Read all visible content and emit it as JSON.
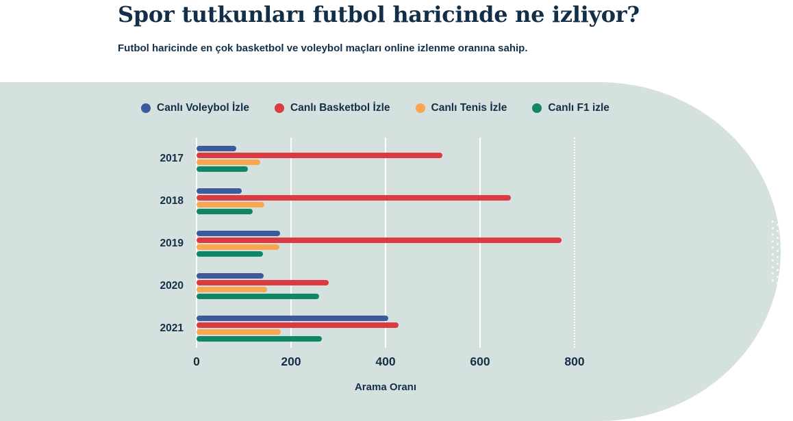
{
  "header": {
    "title": "Spor tutkunları futbol haricinde ne izliyor?",
    "subtitle": "Futbol haricinde en çok basketbol ve voleybol maçları online izlenme oranına sahip."
  },
  "colors": {
    "page_bg": "#ffffff",
    "panel_bg": "#d5e1df",
    "text": "#132f47",
    "gridline": "#ffffff",
    "voleybol": "#3d5a9b",
    "basketbol": "#da3a40",
    "tenis": "#f9a64e",
    "f1": "#0f8767"
  },
  "chart_data": {
    "type": "bar",
    "orientation": "horizontal",
    "title": "Spor tutkunları futbol haricinde ne izliyor?",
    "subtitle": "Futbol haricinde en çok basketbol ve voleybol maçları online izlenme oranına sahip.",
    "xlabel": "Arama Oranı",
    "ylabel": "",
    "x_ticks": [
      0,
      200,
      400,
      600,
      800
    ],
    "xlim": [
      0,
      915
    ],
    "grid": true,
    "last_gridline_style": "dotted",
    "legend_position": "top",
    "categories": [
      "2017",
      "2018",
      "2019",
      "2020",
      "2021"
    ],
    "series": [
      {
        "name": "Canlı Voleybol İzle",
        "color": "#3d5a9b",
        "values": [
          84,
          96,
          177,
          142,
          406
        ]
      },
      {
        "name": "Canlı Basketbol İzle",
        "color": "#da3a40",
        "values": [
          520,
          665,
          772,
          279,
          428
        ]
      },
      {
        "name": "Canlı Tenis İzle",
        "color": "#f9a64e",
        "values": [
          135,
          143,
          175,
          150,
          178
        ]
      },
      {
        "name": "Canlı F1 izle",
        "color": "#0f8767",
        "values": [
          108,
          119,
          141,
          260,
          265
        ]
      }
    ]
  }
}
